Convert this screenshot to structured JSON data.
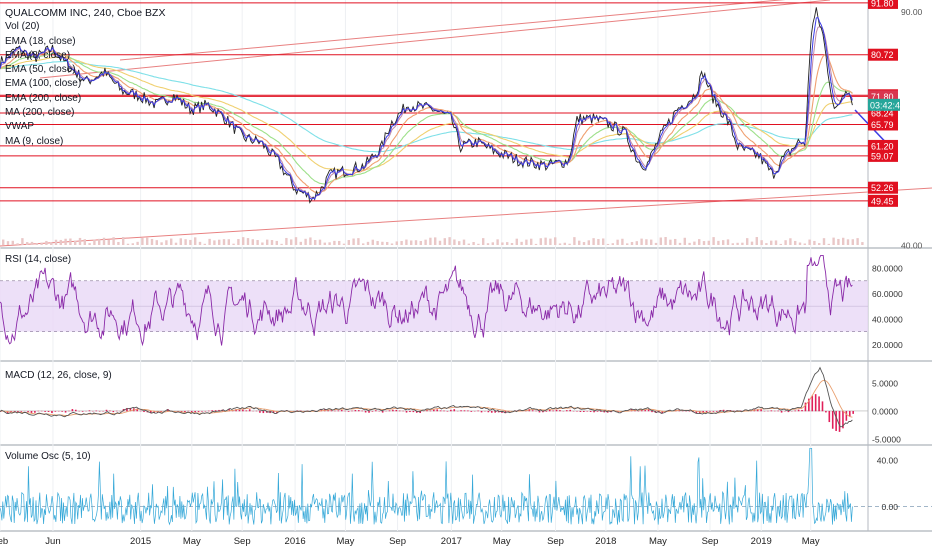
{
  "header": {
    "title": "QUALCOMM INC, 240, Cboe BZX"
  },
  "legend": [
    "Vol (20)",
    "EMA (18, close)",
    "EMA (8, close)",
    "EMA (50, close)",
    "EMA (100, close)",
    "EMA (200, close)",
    "MA (200, close)",
    "VWAP",
    "MA (9, close)"
  ],
  "panes": {
    "rsi_label": "RSI (14, close)",
    "macd_label": "MACD (12, 26, close, 9)",
    "vo_label": "Volume Osc (5, 10)"
  },
  "colors": {
    "price": "#3c3ce6",
    "hline": "#e01020",
    "rsi": "#8a2aa8",
    "rsi_band": "#e9d8f6",
    "macd": "#555555",
    "signal": "#e9a070",
    "hist": "#e0205a",
    "vo": "#35a8d8",
    "countdown": "#26a69a"
  },
  "chart_data": [
    {
      "type": "line",
      "name": "price",
      "xlabels": [
        {
          "t": 0,
          "label": "Feb"
        },
        {
          "t": 0.061,
          "label": "Jun"
        },
        {
          "t": 0.162,
          "label": "2015"
        },
        {
          "t": 0.221,
          "label": "May"
        },
        {
          "t": 0.279,
          "label": "Sep"
        },
        {
          "t": 0.34,
          "label": "2016"
        },
        {
          "t": 0.398,
          "label": "May"
        },
        {
          "t": 0.458,
          "label": "Sep"
        },
        {
          "t": 0.52,
          "label": "2017"
        },
        {
          "t": 0.578,
          "label": "May"
        },
        {
          "t": 0.64,
          "label": "Sep"
        },
        {
          "t": 0.698,
          "label": "2018"
        },
        {
          "t": 0.758,
          "label": "May"
        },
        {
          "t": 0.818,
          "label": "Sep"
        },
        {
          "t": 0.877,
          "label": "2019"
        },
        {
          "t": 0.934,
          "label": "May"
        }
      ],
      "ymin": 40,
      "ymax": 92,
      "yticks": [
        90,
        40
      ],
      "price_points": [
        [
          0,
          79
        ],
        [
          0.02,
          82
        ],
        [
          0.04,
          80
        ],
        [
          0.06,
          82
        ],
        [
          0.08,
          78
        ],
        [
          0.1,
          75
        ],
        [
          0.12,
          77
        ],
        [
          0.14,
          73
        ],
        [
          0.16,
          72
        ],
        [
          0.18,
          70
        ],
        [
          0.2,
          72
        ],
        [
          0.22,
          69
        ],
        [
          0.24,
          70
        ],
        [
          0.26,
          67
        ],
        [
          0.28,
          63
        ],
        [
          0.3,
          62
        ],
        [
          0.32,
          58
        ],
        [
          0.34,
          52
        ],
        [
          0.36,
          50
        ],
        [
          0.37,
          52
        ],
        [
          0.38,
          55
        ],
        [
          0.4,
          56
        ],
        [
          0.42,
          57
        ],
        [
          0.44,
          61
        ],
        [
          0.45,
          66
        ],
        [
          0.47,
          70
        ],
        [
          0.5,
          69
        ],
        [
          0.52,
          67
        ],
        [
          0.53,
          61
        ],
        [
          0.55,
          62
        ],
        [
          0.57,
          60
        ],
        [
          0.6,
          58
        ],
        [
          0.63,
          57
        ],
        [
          0.655,
          58
        ],
        [
          0.665,
          67
        ],
        [
          0.685,
          67
        ],
        [
          0.7,
          66
        ],
        [
          0.72,
          64
        ],
        [
          0.735,
          58
        ],
        [
          0.745,
          57
        ],
        [
          0.76,
          63
        ],
        [
          0.78,
          69
        ],
        [
          0.8,
          72
        ],
        [
          0.81,
          77
        ],
        [
          0.82,
          72
        ],
        [
          0.84,
          66
        ],
        [
          0.85,
          61
        ],
        [
          0.86,
          60
        ],
        [
          0.875,
          59
        ],
        [
          0.89,
          55
        ],
        [
          0.9,
          58
        ],
        [
          0.91,
          60
        ],
        [
          0.92,
          62
        ],
        [
          0.928,
          62
        ],
        [
          0.934,
          85
        ],
        [
          0.94,
          90
        ],
        [
          0.948,
          85
        ],
        [
          0.955,
          76
        ],
        [
          0.962,
          68
        ],
        [
          0.968,
          71
        ],
        [
          0.975,
          74
        ],
        [
          0.982,
          71
        ]
      ],
      "hlines": [
        {
          "value": 91.8,
          "label": "91.80"
        },
        {
          "value": 80.72,
          "label": "80.72"
        },
        {
          "value": 72.04,
          "label": "72.04"
        },
        {
          "value": 71.8,
          "label": "71.80"
        },
        {
          "value": 68.24,
          "label": "68.24"
        },
        {
          "value": 65.79,
          "label": "65.79"
        },
        {
          "value": 61.2,
          "label": "61.20"
        },
        {
          "value": 59.07,
          "label": "59.07"
        },
        {
          "value": 52.26,
          "label": "52.26"
        },
        {
          "value": 49.45,
          "label": "49.45"
        }
      ],
      "countdown_label": "03:42:46",
      "countdown_value": 70.0
    },
    {
      "type": "line",
      "name": "RSI (14, close)",
      "ymin": 10,
      "ymax": 95,
      "yticks": [
        80,
        60,
        40,
        20
      ],
      "ytick_labels": [
        "80.0000",
        "60.0000",
        "40.0000",
        "20.0000"
      ],
      "bands": [
        30,
        70
      ]
    },
    {
      "type": "line",
      "name": "MACD (12, 26, close, 9)",
      "ymin": -5.5,
      "ymax": 8.5,
      "yticks": [
        5,
        0,
        -5
      ],
      "ytick_labels": [
        "5.0000",
        "0.0000",
        "-5.0000"
      ]
    },
    {
      "type": "line",
      "name": "Volume Osc (5, 10)",
      "ymin": -20,
      "ymax": 52,
      "yticks": [
        40,
        0
      ],
      "ytick_labels": [
        "40.00",
        "0.00"
      ]
    }
  ]
}
